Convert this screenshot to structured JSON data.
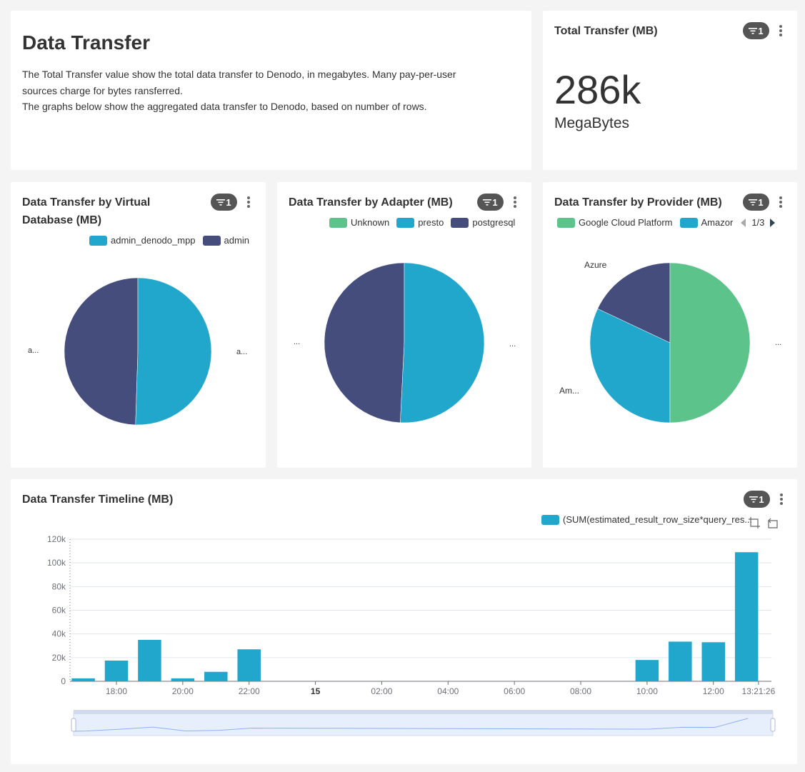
{
  "header_card": {
    "title": "Data Transfer",
    "description_line1": "The Total Transfer value show the total data transfer to Denodo, in megabytes. Many pay-per-user",
    "description_line2": "sources charge for bytes ransferred.",
    "description_line3": "The graphs below show the aggregated data transfer to Denodo, based on number of rows."
  },
  "total_card": {
    "title": "Total Transfer (MB)",
    "filter_count": "1",
    "value": "286k",
    "unit": "MegaBytes"
  },
  "vdb_card": {
    "title_line1": "Data Transfer by Virtual",
    "title_line2": "Database (MB)",
    "filter_count": "1",
    "legend": [
      {
        "label": "admin_denodo_mpp",
        "color": "#22a7cc"
      },
      {
        "label": "admin",
        "color": "#454d7c"
      }
    ],
    "label_left": "a...",
    "label_right": "a..."
  },
  "adapter_card": {
    "title": "Data Transfer by Adapter (MB)",
    "filter_count": "1",
    "legend": [
      {
        "label": "Unknown",
        "color": "#5cc48b"
      },
      {
        "label": "presto",
        "color": "#22a7cc"
      },
      {
        "label": "postgresql",
        "color": "#454d7c"
      }
    ],
    "label_left": "...",
    "label_right": "..."
  },
  "provider_card": {
    "title": "Data Transfer by Provider (MB)",
    "filter_count": "1",
    "legend": [
      {
        "label": "Google Cloud Platform",
        "color": "#5cc48b"
      },
      {
        "label": "Amazor",
        "color": "#22a7cc"
      }
    ],
    "legend_page": "1/3",
    "label_azure": "Azure",
    "label_amazon": "Am...",
    "label_right": "..."
  },
  "timeline_card": {
    "title": "Data Transfer Timeline (MB)",
    "filter_count": "1",
    "legend_label": "(SUM(estimated_result_row_size*query_res...",
    "legend_color": "#22a7cc"
  },
  "chart_data": [
    {
      "type": "pie",
      "categories": [
        "admin_denodo_mpp",
        "admin"
      ],
      "values": [
        50.5,
        49.5
      ]
    },
    {
      "type": "pie",
      "categories": [
        "Unknown",
        "presto",
        "postgresql"
      ],
      "values": [
        0,
        50.8,
        49.2
      ]
    },
    {
      "type": "pie",
      "categories": [
        "Google Cloud Platform",
        "Amazon",
        "Azure"
      ],
      "values": [
        50,
        32,
        18
      ]
    },
    {
      "type": "bar",
      "series": [
        {
          "name": "(SUM(estimated_result_row_size*query_res...",
          "color": "#22a7cc"
        }
      ],
      "y_ticks": [
        "0",
        "20k",
        "40k",
        "60k",
        "80k",
        "100k",
        "120k"
      ],
      "ylim": [
        0,
        120000
      ],
      "x_ticks": [
        {
          "label": "18:00",
          "x": 18,
          "bold": false
        },
        {
          "label": "20:00",
          "x": 20,
          "bold": false
        },
        {
          "label": "22:00",
          "x": 22,
          "bold": false
        },
        {
          "label": "15",
          "x": 24,
          "bold": true
        },
        {
          "label": "02:00",
          "x": 26,
          "bold": false
        },
        {
          "label": "04:00",
          "x": 28,
          "bold": false
        },
        {
          "label": "06:00",
          "x": 30,
          "bold": false
        },
        {
          "label": "08:00",
          "x": 32,
          "bold": false
        },
        {
          "label": "10:00",
          "x": 34,
          "bold": false
        },
        {
          "label": "12:00",
          "x": 36,
          "bold": false
        },
        {
          "label": "13:21:26",
          "x": 37.36,
          "bold": false
        }
      ],
      "xlim": [
        16.6,
        37.75
      ],
      "bars": [
        {
          "x": 17,
          "value": 2500
        },
        {
          "x": 18,
          "value": 17500
        },
        {
          "x": 19,
          "value": 35000
        },
        {
          "x": 20,
          "value": 2500
        },
        {
          "x": 21,
          "value": 8000
        },
        {
          "x": 22,
          "value": 27000
        },
        {
          "x": 34,
          "value": 18000
        },
        {
          "x": 35,
          "value": 33500
        },
        {
          "x": 36,
          "value": 33000
        },
        {
          "x": 37,
          "value": 109000
        }
      ]
    }
  ]
}
